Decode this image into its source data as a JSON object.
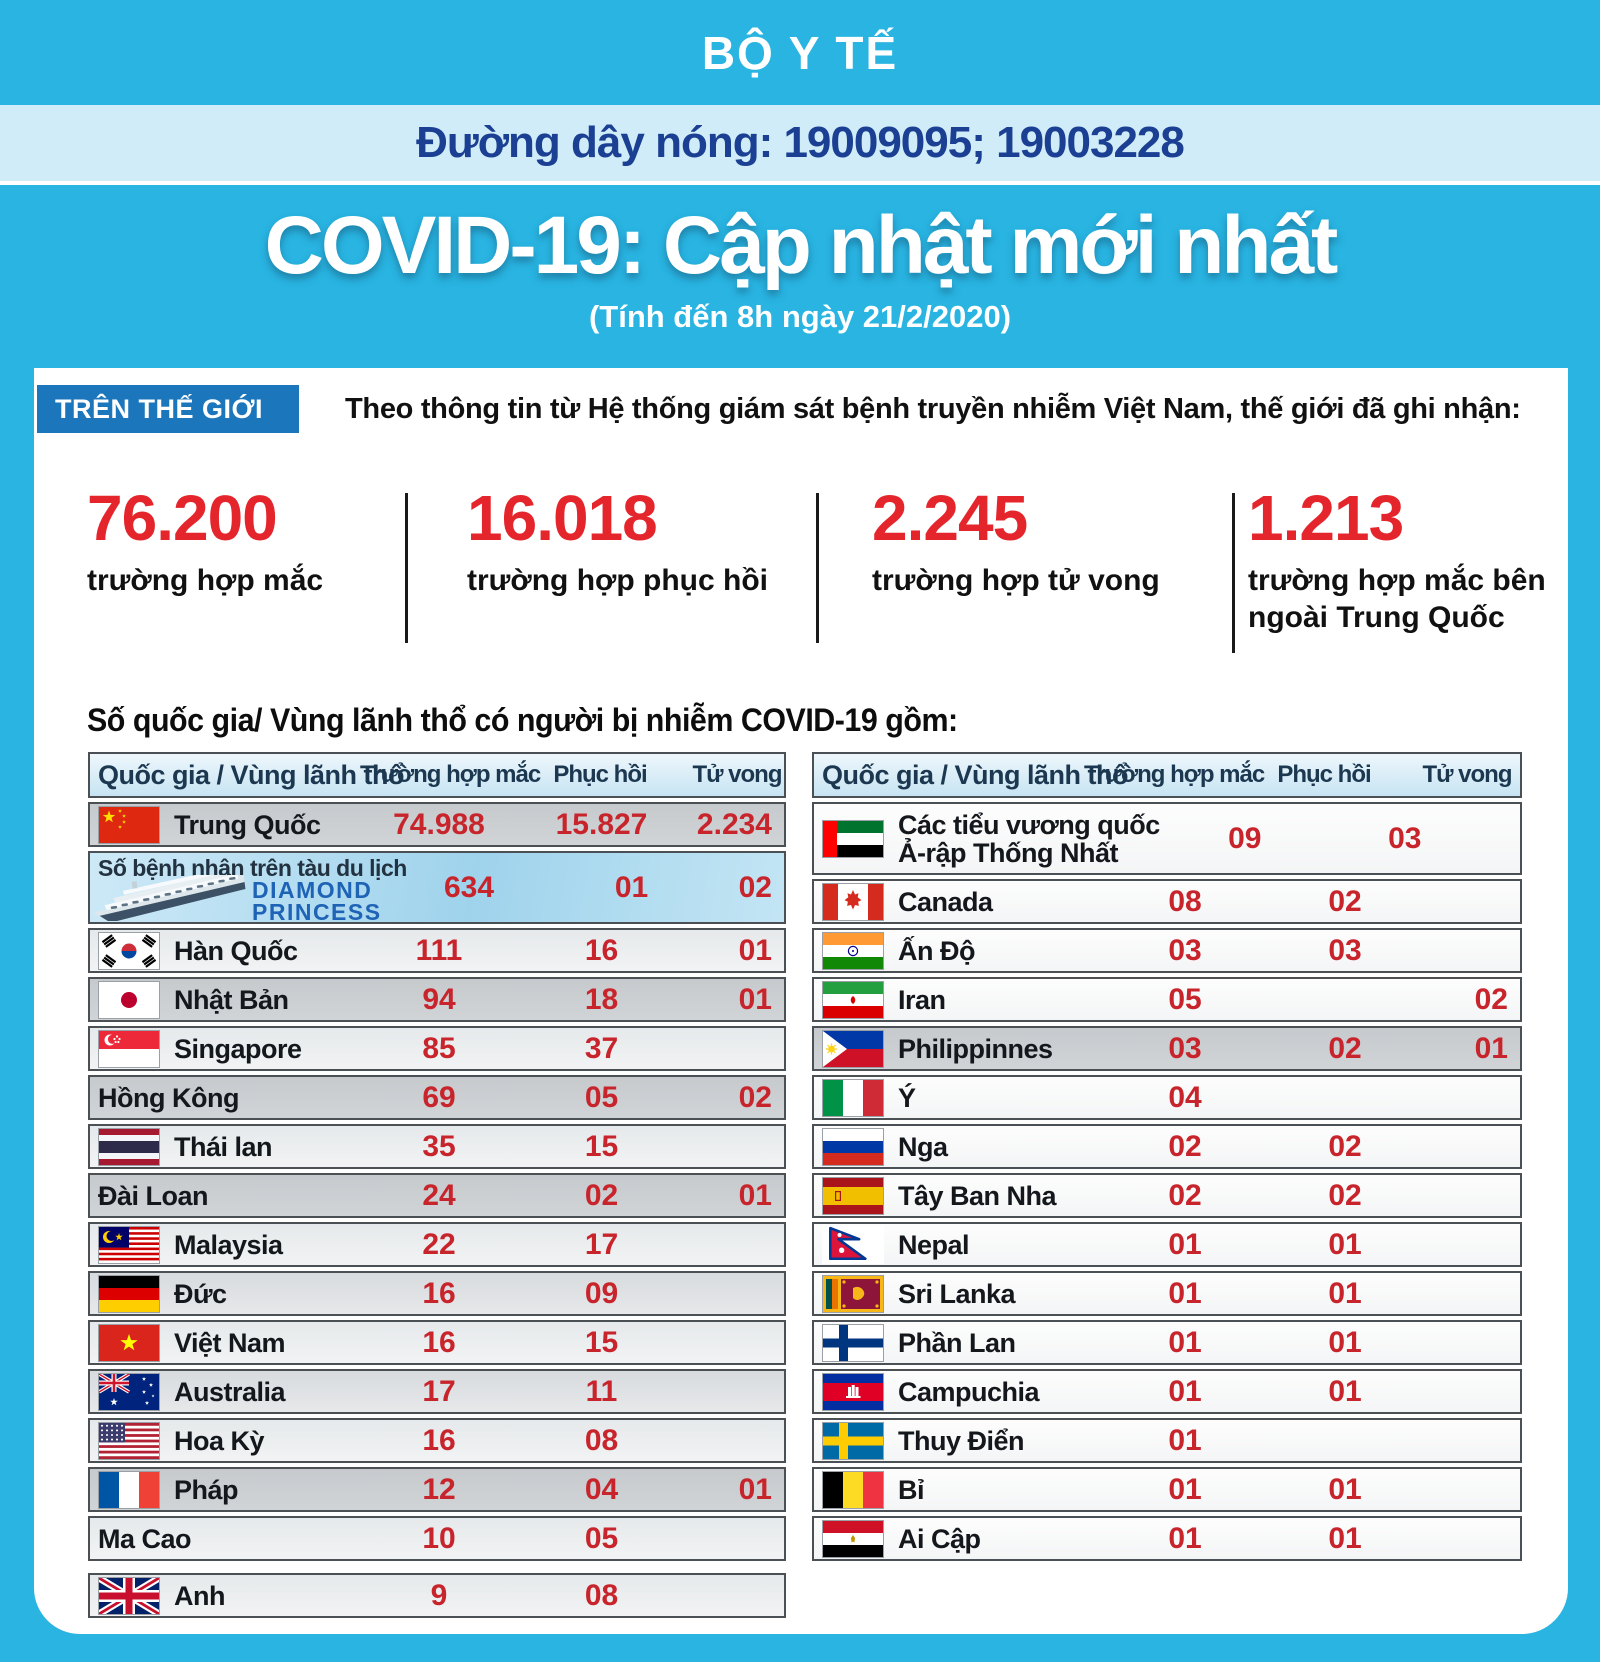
{
  "header": {
    "ministry": "BỘ Y TẾ",
    "hotline": "Đường dây nóng: 19009095; 19003228",
    "title": "COVID-19: Cập nhật mới nhất",
    "subtitle": "(Tính đến 8h ngày 21/2/2020)"
  },
  "world": {
    "label": "TRÊN THẾ GIỚI",
    "intro": "Theo thông tin từ Hệ thống giám sát bệnh truyền nhiễm Việt Nam, thế giới đã ghi nhận:",
    "stats": [
      {
        "value": "76.200",
        "label": "trường hợp mắc"
      },
      {
        "value": "16.018",
        "label": "trường hợp  phục hồi"
      },
      {
        "value": "2.245",
        "label": "trường hợp  tử vong"
      },
      {
        "value": "1.213",
        "label": "trường hợp  mắc bên ngoài Trung Quốc"
      }
    ]
  },
  "section_heading": "Số quốc gia/ Vùng lãnh thổ có người bị nhiễm COVID-19 gồm:",
  "chart_data": [
    {
      "type": "table",
      "title": "Quốc gia / Vùng lãnh thổ - bảng trái",
      "columns": [
        "Quốc gia / Vùng lãnh thổ",
        "Trường hợp mắc",
        "Phục hồi",
        "Tử vong"
      ],
      "rows": [
        {
          "flag": "cn",
          "name": "Trung Quốc",
          "cases": "74.988",
          "recovered": "15.827",
          "deaths": "2.234",
          "shade": "dark"
        },
        {
          "special": "ship",
          "caption": "Số bệnh nhân trên tàu du lịch",
          "brand": [
            "DIAMOND",
            "PRINCESS"
          ],
          "name": "Diamond Princess",
          "cases": "634",
          "recovered": "01",
          "deaths": "02",
          "shade": "blue"
        },
        {
          "flag": "kr",
          "name": "Hàn Quốc",
          "cases": "111",
          "recovered": "16",
          "deaths": "01",
          "shade": "light"
        },
        {
          "flag": "jp",
          "name": "Nhật Bản",
          "cases": "94",
          "recovered": "18",
          "deaths": "01",
          "shade": "dark"
        },
        {
          "flag": "sg",
          "name": "Singapore",
          "cases": "85",
          "recovered": "37",
          "deaths": "",
          "shade": "light"
        },
        {
          "flag": "",
          "name": "Hồng Kông",
          "cases": "69",
          "recovered": "05",
          "deaths": "02",
          "shade": "dark"
        },
        {
          "flag": "th",
          "name": "Thái lan",
          "cases": "35",
          "recovered": "15",
          "deaths": "",
          "shade": "light"
        },
        {
          "flag": "",
          "name": "Đài Loan",
          "cases": "24",
          "recovered": "02",
          "deaths": "01",
          "shade": "dark"
        },
        {
          "flag": "my",
          "name": "Malaysia",
          "cases": "22",
          "recovered": "17",
          "deaths": "",
          "shade": "light"
        },
        {
          "flag": "de",
          "name": "Đức",
          "cases": "16",
          "recovered": "09",
          "deaths": "",
          "shade": "mid"
        },
        {
          "flag": "vn",
          "name": "Việt Nam",
          "cases": "16",
          "recovered": "15",
          "deaths": "",
          "shade": "light"
        },
        {
          "flag": "au",
          "name": "Australia",
          "cases": "17",
          "recovered": "11",
          "deaths": "",
          "shade": "mid"
        },
        {
          "flag": "us",
          "name": "Hoa Kỳ",
          "cases": "16",
          "recovered": "08",
          "deaths": "",
          "shade": "light"
        },
        {
          "flag": "fr",
          "name": "Pháp",
          "cases": "12",
          "recovered": "04",
          "deaths": "01",
          "shade": "dark"
        },
        {
          "flag": "",
          "name": "Ma Cao",
          "cases": "10",
          "recovered": "05",
          "deaths": "",
          "shade": "light"
        },
        {
          "flag": "gb",
          "name": "Anh",
          "cases": "9",
          "recovered": "08",
          "deaths": "",
          "shade": "light",
          "gap_before": true
        }
      ]
    },
    {
      "type": "table",
      "title": "Quốc gia / Vùng lãnh thổ - bảng phải",
      "columns": [
        "Quốc gia / Vùng lãnh thổ",
        "Trường hợp mắc",
        "Phục hồi",
        "Tử vong"
      ],
      "rows": [
        {
          "flag": "ae",
          "name": "Các tiểu vương quốc\nẢ-rập Thống Nhất",
          "cases": "09",
          "recovered": "03",
          "deaths": "",
          "shade": "white",
          "tall": true
        },
        {
          "flag": "ca",
          "name": "Canada",
          "cases": "08",
          "recovered": "02",
          "deaths": "",
          "shade": "white"
        },
        {
          "flag": "in",
          "name": "Ấn Độ",
          "cases": "03",
          "recovered": "03",
          "deaths": "",
          "shade": "white"
        },
        {
          "flag": "ir",
          "name": "Iran",
          "cases": "05",
          "recovered": "",
          "deaths": "02",
          "shade": "white"
        },
        {
          "flag": "ph",
          "name": "Philippinnes",
          "cases": "03",
          "recovered": "02",
          "deaths": "01",
          "shade": "dark"
        },
        {
          "flag": "it",
          "name": "Ý",
          "cases": "04",
          "recovered": "",
          "deaths": "",
          "shade": "white"
        },
        {
          "flag": "ru",
          "name": "Nga",
          "cases": "02",
          "recovered": "02",
          "deaths": "",
          "shade": "white"
        },
        {
          "flag": "es",
          "name": "Tây Ban Nha",
          "cases": "02",
          "recovered": "02",
          "deaths": "",
          "shade": "white"
        },
        {
          "flag": "np",
          "name": "Nepal",
          "cases": "01",
          "recovered": "01",
          "deaths": "",
          "shade": "white"
        },
        {
          "flag": "lk",
          "name": "Sri Lanka",
          "cases": "01",
          "recovered": "01",
          "deaths": "",
          "shade": "white"
        },
        {
          "flag": "fi",
          "name": "Phần Lan",
          "cases": "01",
          "recovered": "01",
          "deaths": "",
          "shade": "white"
        },
        {
          "flag": "kh",
          "name": "Campuchia",
          "cases": "01",
          "recovered": "01",
          "deaths": "",
          "shade": "white"
        },
        {
          "flag": "se",
          "name": "Thuy Điển",
          "cases": "01",
          "recovered": "",
          "deaths": "",
          "shade": "white"
        },
        {
          "flag": "be",
          "name": "Bỉ",
          "cases": "01",
          "recovered": "01",
          "deaths": "",
          "shade": "white"
        },
        {
          "flag": "eg",
          "name": "Ai Cập",
          "cases": "01",
          "recovered": "01",
          "deaths": "",
          "shade": "white"
        }
      ]
    }
  ]
}
